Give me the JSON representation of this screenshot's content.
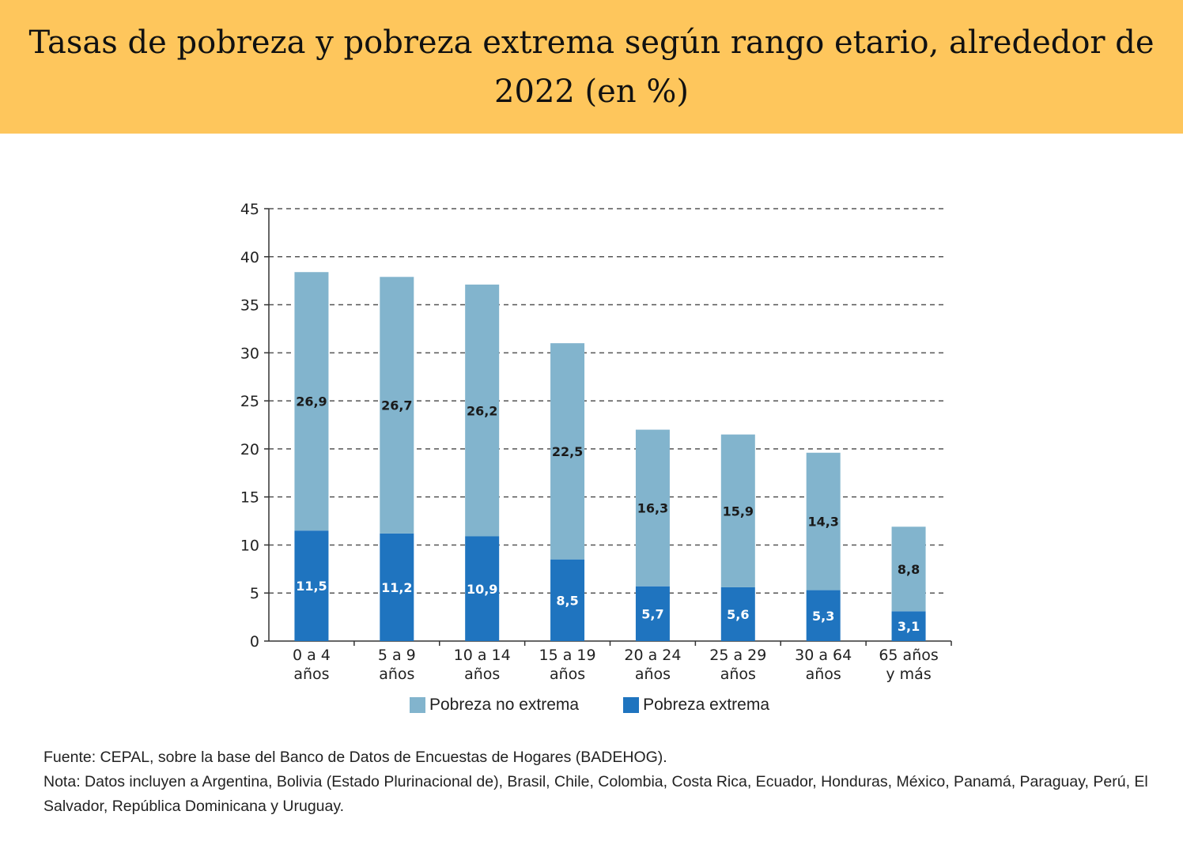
{
  "title": "Tasas de pobreza y pobreza extrema según rango etario, alrededor de 2022 (en %)",
  "colors": {
    "header_bg": "#fec65c",
    "no_extrema": "#82b4cd",
    "extrema": "#1f74bf"
  },
  "source": "Fuente: CEPAL, sobre la base del Banco de Datos de Encuestas de Hogares (BADEHOG).",
  "note": "Nota: Datos incluyen a Argentina, Bolivia (Estado Plurinacional de), Brasil, Chile, Colombia, Costa Rica, Ecuador, Honduras, México, Panamá, Paraguay, Perú, El Salvador, República Dominicana y Uruguay.",
  "chart_data": {
    "type": "bar",
    "stacked": true,
    "categories": [
      [
        "0 a 4",
        "años"
      ],
      [
        "5 a 9",
        "años"
      ],
      [
        "10 a 14",
        "años"
      ],
      [
        "15 a 19",
        "años"
      ],
      [
        "20 a 24",
        "años"
      ],
      [
        "25 a 29",
        "años"
      ],
      [
        "30 a 64",
        "años"
      ],
      [
        "65 años",
        "y más"
      ]
    ],
    "series": [
      {
        "name": "Pobreza extrema",
        "values": [
          11.5,
          11.2,
          10.9,
          8.5,
          5.7,
          5.6,
          5.3,
          3.1
        ],
        "labels": [
          "11,5",
          "11,2",
          "10,9",
          "8,5",
          "5,7",
          "5,6",
          "5,3",
          "3,1"
        ]
      },
      {
        "name": "Pobreza no extrema",
        "values": [
          26.9,
          26.7,
          26.2,
          22.5,
          16.3,
          15.9,
          14.3,
          8.8
        ],
        "labels": [
          "26,9",
          "26,7",
          "26,2",
          "22,5",
          "16,3",
          "15,9",
          "14,3",
          "8,8"
        ]
      }
    ],
    "ylim": [
      0,
      45
    ],
    "yticks": [
      0,
      5,
      10,
      15,
      20,
      25,
      30,
      35,
      40,
      45
    ],
    "grid": "dashed horizontal",
    "legend_position": "bottom",
    "legend": [
      "Pobreza no extrema",
      "Pobreza extrema"
    ]
  }
}
